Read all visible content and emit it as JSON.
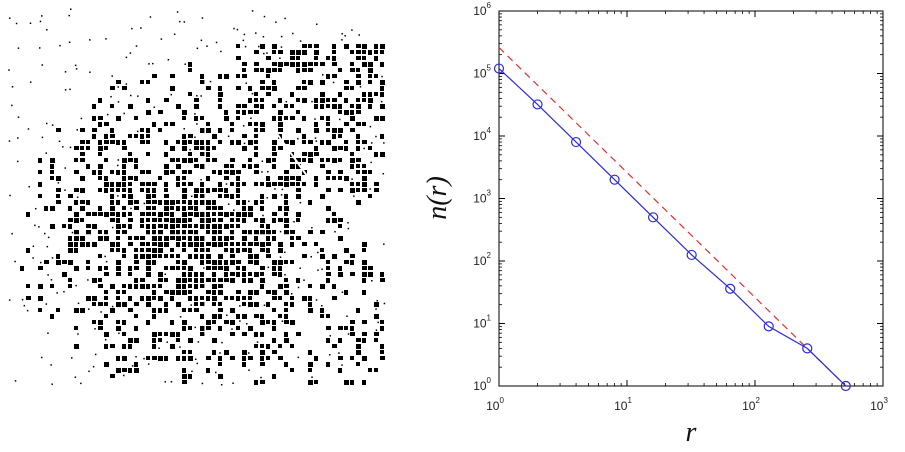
{
  "figure": {
    "left_panel": {
      "content": "binary-urban-map",
      "colors": {
        "built": "#000000",
        "background": "#ffffff"
      }
    },
    "right_panel": "log-log-chart"
  },
  "chart_data": {
    "type": "line",
    "xlabel": "r",
    "ylabel": "n(r)",
    "xscale": "log",
    "yscale": "log",
    "xlim": [
      1,
      1000
    ],
    "ylim": [
      1,
      1000000
    ],
    "grid": false,
    "legend": "none",
    "xticks": [
      {
        "base": "10",
        "exp": "0"
      },
      {
        "base": "10",
        "exp": "1"
      },
      {
        "base": "10",
        "exp": "2"
      },
      {
        "base": "10",
        "exp": "3"
      }
    ],
    "yticks": [
      {
        "base": "10",
        "exp": "0"
      },
      {
        "base": "10",
        "exp": "1"
      },
      {
        "base": "10",
        "exp": "2"
      },
      {
        "base": "10",
        "exp": "3"
      },
      {
        "base": "10",
        "exp": "4"
      },
      {
        "base": "10",
        "exp": "5"
      },
      {
        "base": "10",
        "exp": "6"
      }
    ],
    "series": [
      {
        "style": "solid line with circle markers",
        "color": "#2b2bd6",
        "x": [
          1,
          2,
          4,
          8,
          16,
          32,
          64,
          128,
          256,
          512
        ],
        "y": [
          120000,
          32000,
          8000,
          2000,
          500,
          125,
          36,
          9,
          4,
          1
        ]
      },
      {
        "style": "dashed line",
        "color": "#e03030",
        "x": [
          1,
          512
        ],
        "y": [
          260000,
          1
        ]
      }
    ]
  }
}
